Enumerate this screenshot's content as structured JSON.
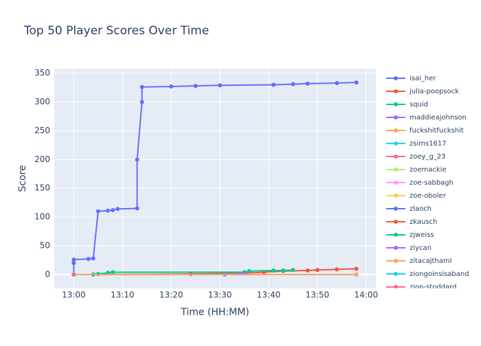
{
  "chart_data": {
    "type": "line",
    "title": "Top 50 Player Scores Over Time",
    "x_label": "Time (HH:MM)",
    "y_label": "Score",
    "xlim": [
      "12:56",
      "14:02"
    ],
    "xticks": [
      "13:00",
      "13:10",
      "13:20",
      "13:30",
      "13:40",
      "13:50",
      "14:00"
    ],
    "ylim": [
      -24,
      358
    ],
    "yticks": [
      0,
      50,
      100,
      150,
      200,
      250,
      300,
      350
    ],
    "grid": true,
    "series": [
      {
        "name": "isai_her",
        "color": "#636efa",
        "x": [
          "13:00",
          "13:00",
          "13:00",
          "13:03",
          "13:04",
          "13:05",
          "13:07",
          "13:08",
          "13:09",
          "13:13",
          "13:13",
          "13:14",
          "13:14",
          "13:20",
          "13:25",
          "13:30",
          "13:41",
          "13:45",
          "13:48",
          "13:54",
          "13:58"
        ],
        "values": [
          0,
          20,
          26,
          27,
          28,
          110,
          111,
          112,
          114,
          115,
          200,
          300,
          326,
          327,
          328,
          329,
          330,
          331,
          332,
          333,
          334
        ]
      },
      {
        "name": "julia-poopsock",
        "color": "#EF553B",
        "x": [
          "13:04",
          "13:24",
          "13:34",
          "13:39",
          "13:43",
          "13:48",
          "13:50",
          "13:54",
          "13:58"
        ],
        "values": [
          0,
          1,
          2,
          4,
          6,
          7,
          8,
          9,
          10
        ]
      },
      {
        "name": "squid",
        "color": "#00cc96",
        "x": [
          "13:04",
          "13:05",
          "13:07",
          "13:08",
          "13:35",
          "13:36",
          "13:41",
          "13:43",
          "13:45"
        ],
        "values": [
          0,
          1,
          3,
          4,
          4,
          6,
          7,
          7,
          8
        ]
      },
      {
        "name": "maddieajohnson",
        "color": "#ab63fa",
        "x": [
          "13:31",
          "13:35"
        ],
        "values": [
          0,
          2
        ]
      },
      {
        "name": "fuckshitfuckshit",
        "color": "#FFA15A",
        "x": [
          "13:00",
          "13:58"
        ],
        "values": [
          0,
          0
        ]
      },
      {
        "name": "zsims1617",
        "color": "#19d3f3",
        "x": [
          "13:00"
        ],
        "values": [
          0
        ]
      },
      {
        "name": "zoey_g_23",
        "color": "#FF6692",
        "x": [
          "13:00"
        ],
        "values": [
          0
        ]
      },
      {
        "name": "zoemackie",
        "color": "#B6E880",
        "x": [
          "13:00"
        ],
        "values": [
          0
        ]
      },
      {
        "name": "zoe-sabbagh",
        "color": "#FF97FF",
        "x": [
          "13:00"
        ],
        "values": [
          0
        ]
      },
      {
        "name": "zoe-oboler",
        "color": "#FECB52",
        "x": [
          "13:00"
        ],
        "values": [
          0
        ]
      },
      {
        "name": "zlaoch",
        "color": "#636efa",
        "x": [
          "13:00"
        ],
        "values": [
          0
        ]
      },
      {
        "name": "zkausch",
        "color": "#EF553B",
        "x": [
          "13:00"
        ],
        "values": [
          0
        ]
      },
      {
        "name": "zjweiss",
        "color": "#00cc96",
        "x": [
          "13:00"
        ],
        "values": [
          0
        ]
      },
      {
        "name": "ziycan",
        "color": "#ab63fa",
        "x": [
          "13:00"
        ],
        "values": [
          0
        ]
      },
      {
        "name": "zitacajthaml",
        "color": "#FFA15A",
        "x": [
          "13:00"
        ],
        "values": [
          0
        ]
      },
      {
        "name": "ziongoinsisaband",
        "color": "#19d3f3",
        "x": [
          "13:00"
        ],
        "values": [
          0
        ]
      },
      {
        "name": "zion-stoddard",
        "color": "#FF6692",
        "x": [
          "13:00"
        ],
        "values": [
          0
        ]
      }
    ]
  }
}
